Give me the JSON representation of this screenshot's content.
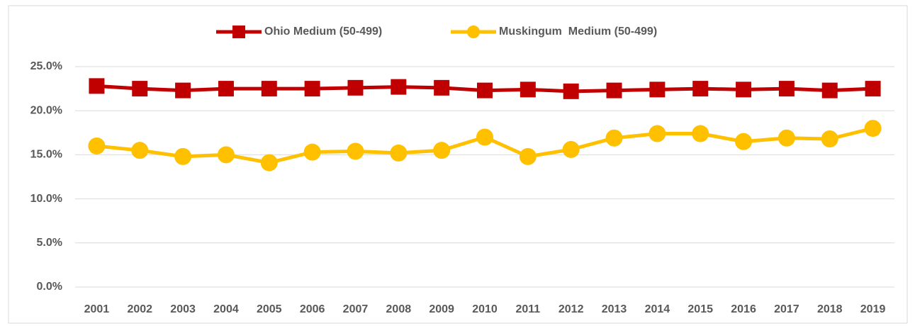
{
  "chart_data": {
    "type": "line",
    "categories": [
      "2001",
      "2002",
      "2003",
      "2004",
      "2005",
      "2006",
      "2007",
      "2008",
      "2009",
      "2010",
      "2011",
      "2012",
      "2013",
      "2014",
      "2015",
      "2016",
      "2017",
      "2018",
      "2019"
    ],
    "series": [
      {
        "name": "Ohio Medium (50-499)",
        "color": "#c00000",
        "marker": "square",
        "values": [
          22.8,
          22.5,
          22.3,
          22.5,
          22.5,
          22.5,
          22.6,
          22.7,
          22.6,
          22.3,
          22.4,
          22.2,
          22.3,
          22.4,
          22.5,
          22.4,
          22.5,
          22.3,
          22.5
        ]
      },
      {
        "name": "Muskingum  Medium (50-499)",
        "color": "#ffc000",
        "marker": "circle",
        "values": [
          16.0,
          15.5,
          14.8,
          15.0,
          14.1,
          15.3,
          15.4,
          15.2,
          15.5,
          17.0,
          14.8,
          15.6,
          16.9,
          17.4,
          17.4,
          16.5,
          16.9,
          16.8,
          18.0
        ]
      }
    ],
    "ylim": [
      0,
      25
    ],
    "yticks": [
      {
        "value": 0,
        "label": "0.0%"
      },
      {
        "value": 5,
        "label": "5.0%"
      },
      {
        "value": 10,
        "label": "10.0%"
      },
      {
        "value": 15,
        "label": "15.0%"
      },
      {
        "value": 20,
        "label": "20.0%"
      },
      {
        "value": 25,
        "label": "25.0%"
      }
    ],
    "grid": true,
    "legend": "top"
  }
}
